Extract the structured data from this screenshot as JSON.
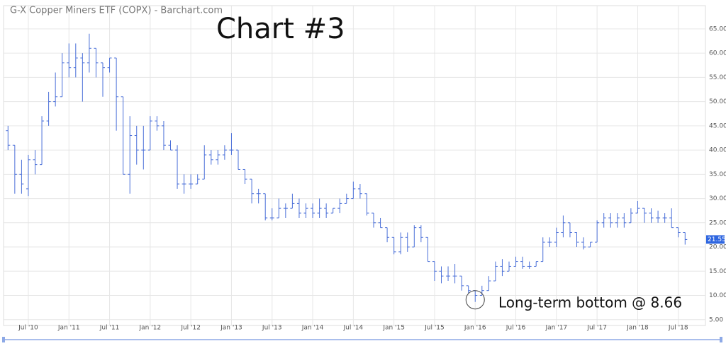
{
  "chart_data": {
    "type": "ohlc",
    "title": "G-X Copper Miners ETF (COPX) - Barchart.com",
    "annotation": "Chart #3",
    "bottom_note": "Long-term bottom @ 8.66",
    "categories": [
      null,
      null,
      null,
      "Jul '10",
      null,
      null,
      null,
      null,
      null,
      "Jan '11",
      null,
      null,
      null,
      null,
      null,
      "Jul '11",
      null,
      null,
      null,
      null,
      null,
      "Jan '12",
      null,
      null,
      null,
      null,
      null,
      "Jul '12",
      null,
      null,
      null,
      null,
      null,
      "Jan '13",
      null,
      null,
      null,
      null,
      null,
      "Jul '13",
      null,
      null,
      null,
      null,
      null,
      "Jan '14",
      null,
      null,
      null,
      null,
      null,
      "Jul '14",
      null,
      null,
      null,
      null,
      null,
      "Jan '15",
      null,
      null,
      null,
      null,
      null,
      "Jul '15",
      null,
      null,
      null,
      null,
      null,
      "Jan '16",
      null,
      null,
      null,
      null,
      null,
      "Jul '16",
      null,
      null,
      null,
      null,
      null,
      "Jan '17",
      null,
      null,
      null,
      null,
      null,
      "Jul '17",
      null,
      null,
      null,
      null,
      null,
      "Jan '18",
      null,
      null,
      null,
      null,
      null,
      "Jul '18",
      null
    ],
    "ohlc": {
      "color": "#4a6fd8",
      "open": [
        44,
        41,
        35,
        32,
        38,
        37,
        46,
        50,
        51,
        58,
        57,
        59,
        58,
        61,
        58,
        57,
        59,
        51,
        35,
        43,
        40,
        40,
        46,
        45,
        41,
        40,
        33,
        33,
        33,
        34,
        39,
        38,
        39,
        40,
        40,
        36,
        34,
        31,
        31,
        26,
        26,
        28,
        28,
        29,
        27,
        28,
        27,
        28,
        27,
        28,
        29,
        30,
        32,
        31,
        27,
        25,
        24,
        22,
        19,
        22,
        20,
        24,
        22,
        17,
        15,
        14,
        14,
        14,
        12,
        11,
        10,
        11,
        13,
        16,
        15,
        16,
        17,
        16,
        16,
        17,
        21,
        21,
        23,
        25,
        23,
        21,
        20,
        21,
        25,
        26,
        25,
        26,
        25,
        27,
        28,
        27,
        26,
        26,
        26,
        24,
        23
      ],
      "high": [
        45,
        41,
        38,
        39,
        40,
        47,
        52,
        56,
        60,
        62,
        62,
        60,
        64,
        61,
        58,
        59,
        59,
        51,
        47,
        45,
        45,
        47,
        47,
        46,
        42,
        41,
        35,
        35,
        35,
        41,
        40,
        40,
        41,
        43.5,
        40,
        36,
        34,
        32,
        31,
        28,
        30,
        29,
        31,
        30,
        29,
        29,
        30,
        29,
        28,
        30,
        31,
        33.5,
        33,
        31,
        27,
        26,
        24,
        22,
        23,
        23,
        24.5,
        24.5,
        22,
        17,
        16,
        16,
        16.5,
        14,
        12,
        11,
        12,
        14,
        17,
        17.5,
        17,
        18,
        18,
        17,
        17,
        22,
        22,
        24,
        26.5,
        25,
        23,
        22,
        21,
        25.5,
        27,
        27,
        27,
        27,
        28,
        29.5,
        28,
        28,
        27.5,
        27,
        28,
        24,
        23
      ],
      "low": [
        40,
        31,
        31,
        30.5,
        35,
        37,
        45,
        49,
        51,
        55,
        55,
        50,
        56,
        55,
        51,
        56,
        44,
        35,
        31,
        37,
        36,
        40,
        44,
        40,
        40,
        32,
        31,
        32,
        33,
        34,
        37,
        37,
        38,
        39,
        36,
        33,
        29,
        29,
        25.5,
        25.5,
        26,
        26,
        28,
        26,
        26,
        26,
        26,
        26,
        27,
        27,
        29,
        30,
        30,
        26.5,
        24,
        24,
        21,
        18.5,
        18.5,
        19,
        20,
        21,
        17,
        13,
        12.5,
        13,
        12.5,
        11,
        10.5,
        8.66,
        10,
        11,
        13,
        14,
        15,
        16,
        15.5,
        15.5,
        16,
        17,
        20,
        20,
        22,
        22,
        20,
        19.5,
        20,
        21,
        24,
        24,
        24,
        24,
        25,
        27,
        25,
        25,
        25,
        25,
        24,
        22,
        20.5
      ],
      "close": [
        41,
        35,
        33,
        38,
        37,
        46,
        50,
        51,
        58,
        57,
        59,
        58,
        61,
        58,
        57,
        59,
        51,
        35,
        43,
        40,
        40,
        46,
        45,
        41,
        40,
        33,
        33,
        33,
        34,
        39,
        38,
        39,
        40,
        40,
        36,
        34,
        31,
        31,
        26,
        26,
        28,
        28,
        29,
        27,
        28,
        27,
        28,
        27,
        28,
        29,
        30,
        32,
        31,
        27,
        25,
        24,
        22,
        19,
        22,
        20,
        24,
        22,
        17,
        15,
        14,
        14,
        14,
        12,
        11,
        10,
        11,
        13,
        16,
        15,
        16,
        17,
        16,
        16,
        17,
        21,
        21,
        23,
        25,
        23,
        21,
        20,
        21,
        25,
        26,
        25,
        26,
        25,
        27,
        28,
        27,
        26,
        26,
        26,
        24,
        23,
        21.55
      ]
    },
    "ylim": [
      3.8,
      69.8
    ],
    "yticks": [
      {
        "value": 5,
        "label": "5.00"
      },
      {
        "value": 10,
        "label": "10.00"
      },
      {
        "value": 15,
        "label": "15.00"
      },
      {
        "value": 20,
        "label": "20.00"
      },
      {
        "value": 25,
        "label": "25.00"
      },
      {
        "value": 30,
        "label": "30.00"
      },
      {
        "value": 35,
        "label": "35.00"
      },
      {
        "value": 40,
        "label": "40.00"
      },
      {
        "value": 45,
        "label": "45.00"
      },
      {
        "value": 50,
        "label": "50.00"
      },
      {
        "value": 55,
        "label": "55.00"
      },
      {
        "value": 60,
        "label": "60.00"
      },
      {
        "value": 65,
        "label": "65.00"
      }
    ],
    "grid": true
  }
}
